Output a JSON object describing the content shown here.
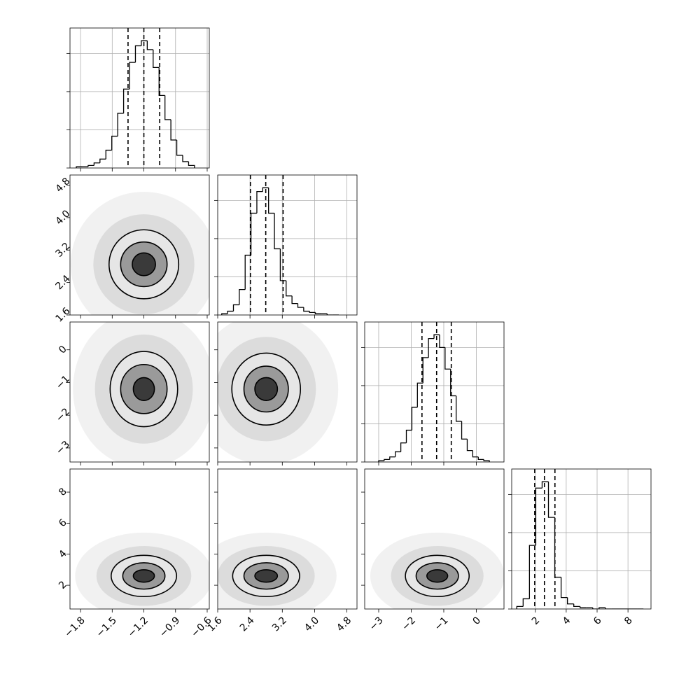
{
  "chart_data": {
    "type": "corner",
    "color": "#000000",
    "grid": true,
    "hist_ylim": [
      0,
      110
    ],
    "hist_yticks": [
      0,
      30,
      60,
      90
    ],
    "params": [
      {
        "range": [
          -1.9,
          -0.58
        ],
        "ticks": [
          {
            "value": -1.8,
            "label": "−1.8"
          },
          {
            "value": -1.5,
            "label": "−1.5"
          },
          {
            "value": -1.2,
            "label": "−1.2"
          },
          {
            "value": -0.9,
            "label": "−0.9"
          },
          {
            "value": -0.6,
            "label": "−0.6"
          }
        ],
        "bins": [
          -1.84,
          -1.784,
          -1.728,
          -1.672,
          -1.616,
          -1.56,
          -1.504,
          -1.448,
          -1.392,
          -1.336,
          -1.28,
          -1.224,
          -1.168,
          -1.112,
          -1.056,
          -1.0,
          -0.944,
          -0.888,
          -0.832,
          -0.776,
          -0.72
        ],
        "counts": [
          1,
          1,
          2,
          4,
          7,
          14,
          25,
          43,
          62,
          83,
          96,
          100,
          93,
          79,
          57,
          38,
          22,
          10,
          5,
          2
        ],
        "quantiles": [
          -1.35,
          -1.2,
          -1.05
        ]
      },
      {
        "range": [
          1.6,
          5.05
        ],
        "ticks": [
          1.6,
          2.4,
          3.2,
          {
            "value": 4,
            "label": "4.0"
          },
          4.8
        ],
        "bins": [
          1.7,
          1.845,
          1.99,
          2.135,
          2.28,
          2.425,
          2.57,
          2.715,
          2.86,
          3.005,
          3.15,
          3.295,
          3.44,
          3.585,
          3.73,
          3.875,
          4.02,
          4.165,
          4.31,
          4.455,
          4.6
        ],
        "counts": [
          1,
          3,
          8,
          20,
          47,
          80,
          97,
          100,
          80,
          52,
          27,
          15,
          9,
          6,
          3,
          2,
          1,
          1,
          0,
          0
        ],
        "quantiles": [
          2.41,
          2.79,
          3.22
        ]
      },
      {
        "range": [
          -3.43,
          0.85
        ],
        "ticks": [
          {
            "value": -3,
            "label": "−3"
          },
          {
            "value": -2,
            "label": "−2"
          },
          {
            "value": -1,
            "label": "−1"
          },
          0
        ],
        "bins": [
          -3.0,
          -2.83,
          -2.66,
          -2.49,
          -2.32,
          -2.15,
          -1.98,
          -1.81,
          -1.64,
          -1.47,
          -1.3,
          -1.13,
          -0.96,
          -0.79,
          -0.62,
          -0.45,
          -0.28,
          -0.11,
          0.06,
          0.23,
          0.4
        ],
        "counts": [
          1,
          2,
          4,
          8,
          15,
          25,
          43,
          62,
          82,
          97,
          100,
          90,
          73,
          52,
          32,
          18,
          9,
          4,
          2,
          1
        ],
        "quantiles": [
          -1.67,
          -1.22,
          -0.77
        ]
      },
      {
        "range": [
          0.47,
          9.49
        ],
        "ticks": [
          2,
          4,
          6,
          8
        ],
        "bins": [
          0.8,
          1.21,
          1.62,
          2.03,
          2.44,
          2.85,
          3.26,
          3.67,
          4.08,
          4.49,
          4.9,
          5.31,
          5.72,
          6.13,
          6.54,
          6.95,
          7.36,
          7.77,
          8.18,
          8.59,
          9.0
        ],
        "counts": [
          2,
          8,
          50,
          95,
          100,
          72,
          25,
          9,
          4,
          2,
          1,
          1,
          0,
          1,
          0,
          0,
          0,
          0,
          0,
          0
        ],
        "quantiles": [
          1.96,
          2.59,
          3.27
        ]
      }
    ],
    "pairs": [
      {
        "center": [
          -1.2,
          2.85
        ],
        "radii": [
          [
            0.33,
            0.85
          ],
          [
            0.22,
            0.55
          ],
          [
            0.11,
            0.28
          ]
        ]
      },
      {
        "center": [
          -1.2,
          -1.2
        ],
        "radii": [
          [
            0.32,
            1.15
          ],
          [
            0.22,
            0.75
          ],
          [
            0.1,
            0.35
          ]
        ]
      },
      {
        "center": [
          2.8,
          -1.2
        ],
        "radii": [
          [
            0.85,
            1.1
          ],
          [
            0.55,
            0.7
          ],
          [
            0.28,
            0.35
          ]
        ]
      },
      {
        "center": [
          -1.2,
          2.6
        ],
        "radii": [
          [
            0.31,
            1.33
          ],
          [
            0.2,
            0.85
          ],
          [
            0.1,
            0.4
          ]
        ]
      },
      {
        "center": [
          2.8,
          2.6
        ],
        "radii": [
          [
            0.83,
            1.33
          ],
          [
            0.55,
            0.85
          ],
          [
            0.28,
            0.4
          ]
        ]
      },
      {
        "center": [
          -1.2,
          2.6
        ],
        "radii": [
          [
            0.98,
            1.33
          ],
          [
            0.65,
            0.85
          ],
          [
            0.32,
            0.4
          ]
        ]
      }
    ]
  }
}
